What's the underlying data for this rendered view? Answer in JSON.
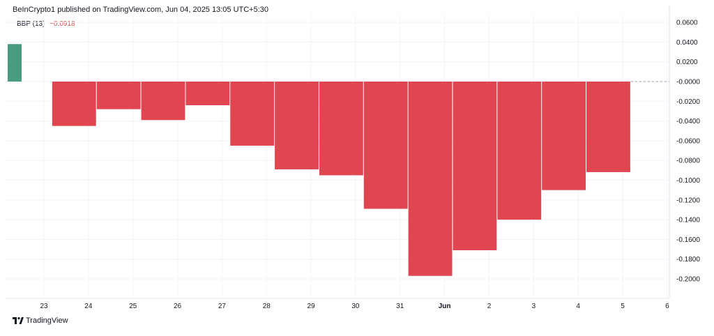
{
  "header": {
    "published_text": "BeInCrypto1 published on TradingView.com, Jun 04, 2025 13:05 UTC+5:30"
  },
  "legend": {
    "indicator_name": "BBP (13)",
    "current_value": "−0.0918"
  },
  "footer": {
    "brand_text": "TradingView",
    "logo_icon": "tradingview-logo-icon"
  },
  "colors": {
    "positive_bar": "#4a9c7f",
    "negative_bar": "#e0464f",
    "grid": "#f0f3fa",
    "axis_text": "#131722",
    "zero_line": "#9598a1"
  },
  "chart_data": {
    "type": "bar",
    "title": "",
    "xlabel": "",
    "ylabel": "",
    "grid": true,
    "ylim": [
      -0.22,
      0.06
    ],
    "y_ticks": [
      "0.0600",
      "0.0400",
      "0.0200",
      "-0.0000",
      "-0.0200",
      "-0.0400",
      "-0.0600",
      "-0.0800",
      "-0.1000",
      "-0.1200",
      "-0.1400",
      "-0.1600",
      "-0.1800",
      "-0.2000"
    ],
    "y_tick_values": [
      0.06,
      0.04,
      0.02,
      0,
      -0.02,
      -0.04,
      -0.06,
      -0.08,
      -0.1,
      -0.12,
      -0.14,
      -0.16,
      -0.18,
      -0.2
    ],
    "x_tick_labels": [
      "23",
      "24",
      "25",
      "26",
      "27",
      "28",
      "29",
      "30",
      "31",
      "Jun",
      "2",
      "3",
      "4",
      "5",
      "6"
    ],
    "series": [
      {
        "values": [
          0.038,
          -0.045,
          -0.028,
          -0.039,
          -0.024,
          -0.065,
          -0.089,
          -0.095,
          -0.129,
          -0.197,
          -0.171,
          -0.14,
          -0.11,
          -0.0918
        ]
      }
    ]
  }
}
